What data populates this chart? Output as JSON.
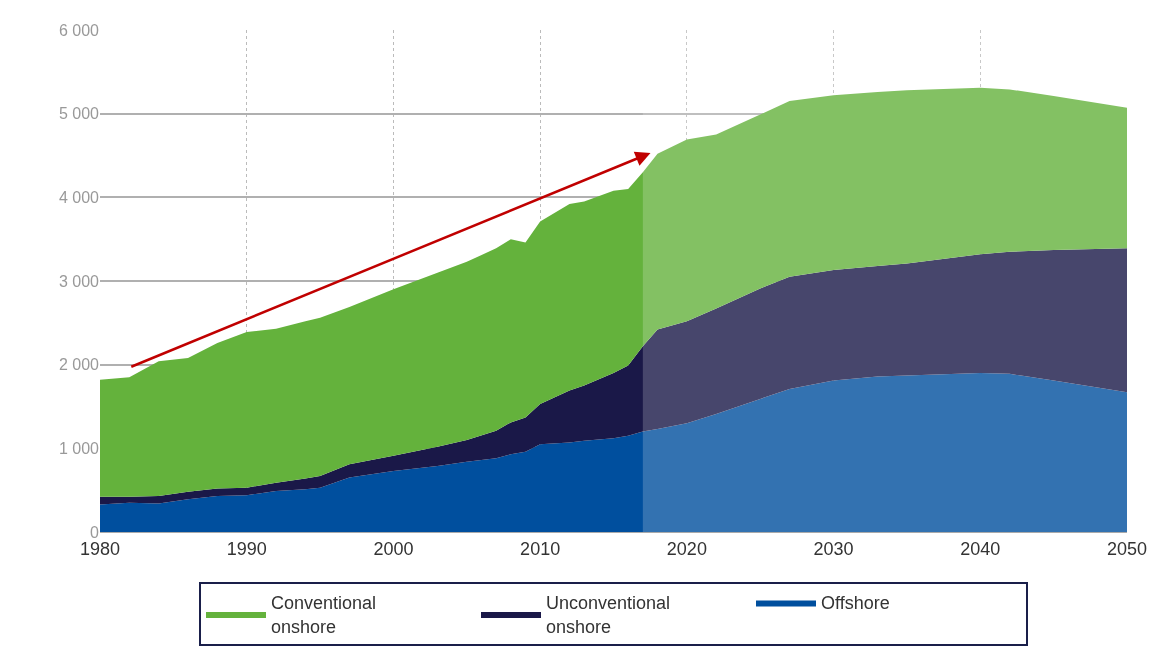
{
  "chart_data": {
    "type": "area",
    "stacked": true,
    "grid": true,
    "legend": "bottom",
    "xlim": [
      1980,
      2050
    ],
    "xticks": [
      1980,
      1990,
      2000,
      2010,
      2020,
      2030,
      2040,
      2050
    ],
    "ylim": [
      0,
      6000
    ],
    "yticks": [
      {
        "value": 0,
        "label": "0"
      },
      {
        "value": 1000,
        "label": "1 000"
      },
      {
        "value": 2000,
        "label": "2 000"
      },
      {
        "value": 3000,
        "label": "3 000"
      },
      {
        "value": 4000,
        "label": "4 000"
      },
      {
        "value": 5000,
        "label": "5 000"
      },
      {
        "value": 6000,
        "label": "6 000"
      }
    ],
    "x": [
      1980,
      1982,
      1984,
      1986,
      1988,
      1990,
      1992,
      1994,
      1995,
      1997,
      2000,
      2003,
      2005,
      2007,
      2008,
      2009,
      2010,
      2012,
      2013,
      2015,
      2016,
      2017,
      2018,
      2020,
      2022,
      2025,
      2027,
      2030,
      2033,
      2035,
      2040,
      2042,
      2045,
      2050
    ],
    "bands": [
      {
        "axis": "x",
        "from": 2017,
        "to": 2050,
        "color": "#ffffff"
      }
    ],
    "series": [
      {
        "name": "Offshore",
        "color": "#004f9e",
        "values": [
          330,
          350,
          340,
          390,
          430,
          440,
          490,
          510,
          530,
          650,
          730,
          790,
          840,
          880,
          930,
          960,
          1050,
          1070,
          1090,
          1120,
          1150,
          1200,
          1230,
          1300,
          1410,
          1590,
          1710,
          1810,
          1860,
          1870,
          1900,
          1890,
          1810,
          1670
        ]
      },
      {
        "name": "Unconventional onshore",
        "color": "#1a1848",
        "values": [
          90,
          70,
          90,
          90,
          90,
          90,
          100,
          130,
          140,
          160,
          180,
          230,
          260,
          330,
          380,
          410,
          480,
          620,
          660,
          780,
          840,
          1020,
          1190,
          1220,
          1260,
          1320,
          1340,
          1320,
          1320,
          1340,
          1420,
          1460,
          1560,
          1720
        ]
      },
      {
        "name": "Conventional onshore",
        "color": "#64b23c",
        "values": [
          1400,
          1430,
          1610,
          1600,
          1740,
          1860,
          1840,
          1880,
          1890,
          1880,
          1990,
          2080,
          2130,
          2180,
          2190,
          2090,
          2180,
          2230,
          2200,
          2180,
          2110,
          2080,
          2100,
          2170,
          2080,
          2080,
          2100,
          2090,
          2080,
          2070,
          1990,
          1940,
          1840,
          1680
        ]
      }
    ]
  }
}
